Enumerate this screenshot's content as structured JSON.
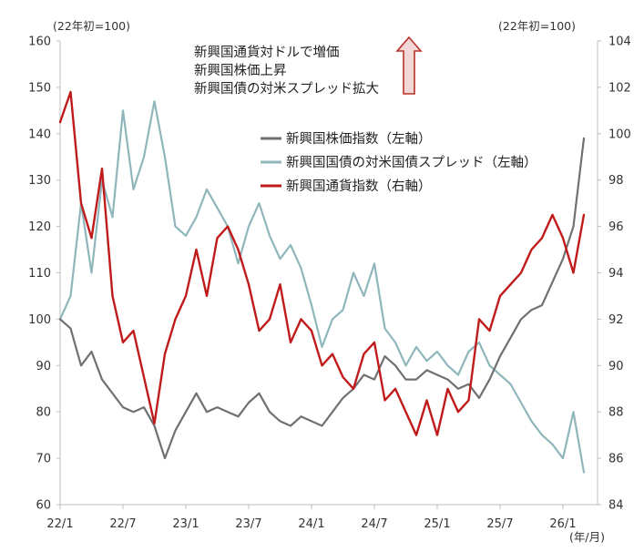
{
  "chart_data": {
    "type": "line",
    "title": "",
    "xlabel": "(年/月)",
    "left_axis": {
      "unit_label": "(22年初=100)",
      "ylim": [
        60,
        160
      ],
      "ticks": [
        60,
        70,
        80,
        90,
        100,
        110,
        120,
        130,
        140,
        150,
        160
      ]
    },
    "right_axis": {
      "unit_label": "(22年初=100)",
      "ylim": [
        84,
        104
      ],
      "ticks": [
        84,
        86,
        88,
        90,
        92,
        94,
        96,
        98,
        100,
        102,
        104
      ]
    },
    "x_ticks": [
      "22/1",
      "22/7",
      "23/1",
      "23/7",
      "24/1",
      "24/7",
      "25/1",
      "25/7",
      "26/1"
    ],
    "grid": false,
    "legend_position": "upper-center",
    "annotation": {
      "lines": [
        "新興国通貨対ドルで増価",
        "新興国株価上昇",
        "新興国債の対米スプレッド拡大"
      ],
      "arrow": "up"
    },
    "series": [
      {
        "name": "新興国株価指数（左軸）",
        "axis": "left",
        "color": "#707070",
        "x": [
          "22/1",
          "22/2",
          "22/3",
          "22/4",
          "22/5",
          "22/6",
          "22/7",
          "22/8",
          "22/9",
          "22/10",
          "22/11",
          "22/12",
          "23/1",
          "23/2",
          "23/3",
          "23/4",
          "23/5",
          "23/6",
          "23/7",
          "23/8",
          "23/9",
          "23/10",
          "23/11",
          "23/12",
          "24/1",
          "24/2",
          "24/3",
          "24/4",
          "24/5",
          "24/6",
          "24/7",
          "24/8",
          "24/9",
          "24/10",
          "24/11",
          "24/12",
          "25/1",
          "25/2",
          "25/3",
          "25/4",
          "25/5",
          "25/6",
          "25/7",
          "25/8",
          "25/9",
          "25/10",
          "25/11",
          "25/12",
          "26/1",
          "26/2",
          "26/3"
        ],
        "values": [
          100,
          98,
          90,
          93,
          87,
          84,
          81,
          80,
          81,
          77,
          70,
          76,
          80,
          84,
          80,
          81,
          80,
          79,
          82,
          84,
          80,
          78,
          77,
          79,
          78,
          77,
          80,
          83,
          85,
          88,
          87,
          92,
          90,
          87,
          87,
          89,
          88,
          87,
          85,
          86,
          83,
          87,
          92,
          96,
          100,
          102,
          103,
          108,
          113,
          120,
          139
        ]
      },
      {
        "name": "新興国国債の対米国債スプレッド（左軸）",
        "axis": "left",
        "color": "#8fb7bb",
        "x": [
          "22/1",
          "22/2",
          "22/3",
          "22/4",
          "22/5",
          "22/6",
          "22/7",
          "22/8",
          "22/9",
          "22/10",
          "22/11",
          "22/12",
          "23/1",
          "23/2",
          "23/3",
          "23/4",
          "23/5",
          "23/6",
          "23/7",
          "23/8",
          "23/9",
          "23/10",
          "23/11",
          "23/12",
          "24/1",
          "24/2",
          "24/3",
          "24/4",
          "24/5",
          "24/6",
          "24/7",
          "24/8",
          "24/9",
          "24/10",
          "24/11",
          "24/12",
          "25/1",
          "25/2",
          "25/3",
          "25/4",
          "25/5",
          "25/6",
          "25/7",
          "25/8",
          "25/9",
          "25/10",
          "25/11",
          "25/12",
          "26/1",
          "26/2",
          "26/3"
        ],
        "values": [
          100,
          105,
          125,
          110,
          130,
          122,
          145,
          128,
          135,
          147,
          135,
          120,
          118,
          122,
          128,
          124,
          120,
          112,
          120,
          125,
          118,
          113,
          116,
          111,
          103,
          94,
          100,
          102,
          110,
          105,
          112,
          98,
          95,
          90,
          94,
          91,
          93,
          90,
          88,
          93,
          95,
          90,
          88,
          86,
          82,
          78,
          75,
          73,
          70,
          80,
          67
        ]
      },
      {
        "name": "新興国通貨指数（右軸）",
        "axis": "right",
        "color": "#c01b1b",
        "x": [
          "22/1",
          "22/2",
          "22/3",
          "22/4",
          "22/5",
          "22/6",
          "22/7",
          "22/8",
          "22/9",
          "22/10",
          "22/11",
          "22/12",
          "23/1",
          "23/2",
          "23/3",
          "23/4",
          "23/5",
          "23/6",
          "23/7",
          "23/8",
          "23/9",
          "23/10",
          "23/11",
          "23/12",
          "24/1",
          "24/2",
          "24/3",
          "24/4",
          "24/5",
          "24/6",
          "24/7",
          "24/8",
          "24/9",
          "24/10",
          "24/11",
          "24/12",
          "25/1",
          "25/2",
          "25/3",
          "25/4",
          "25/5",
          "25/6",
          "25/7",
          "25/8",
          "25/9",
          "25/10",
          "25/11",
          "25/12",
          "26/1",
          "26/2",
          "26/3"
        ],
        "values": [
          100.5,
          101.8,
          97,
          95.5,
          98.5,
          93,
          91,
          91.5,
          89.5,
          87.5,
          90.5,
          92,
          93,
          95,
          93,
          95.5,
          96,
          95,
          93.5,
          91.5,
          92,
          93.5,
          91,
          92,
          91.5,
          90,
          90.5,
          89.5,
          89,
          90.5,
          91,
          88.5,
          89,
          88,
          87,
          88.5,
          87,
          89,
          88,
          88.5,
          92,
          91.5,
          93,
          93.5,
          94,
          95,
          95.5,
          96.5,
          95.5,
          94,
          96.5
        ]
      }
    ]
  }
}
